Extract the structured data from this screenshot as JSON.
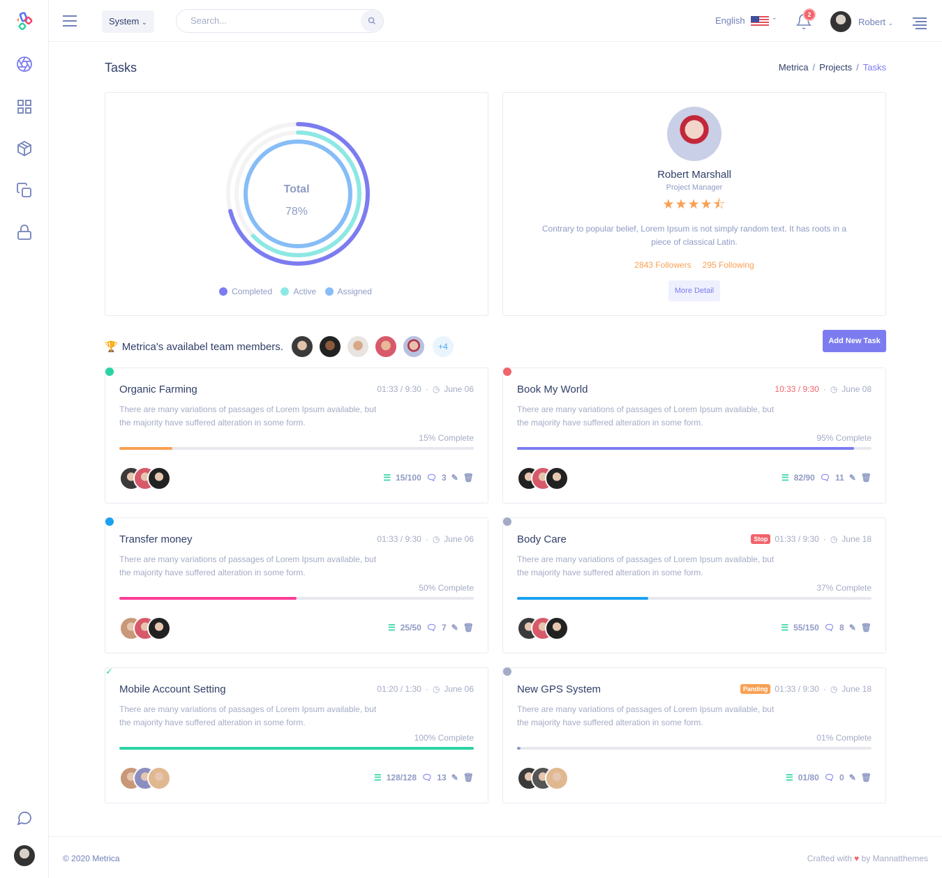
{
  "header": {
    "system_label": "System",
    "search_placeholder": "Search...",
    "language": "English",
    "notifications": "2",
    "user": "Robert"
  },
  "sidebar": {
    "items": [
      "dashboard-icon",
      "apps-icon",
      "box-icon",
      "copy-icon",
      "lock-icon",
      "chat-icon"
    ]
  },
  "page": {
    "title": "Tasks",
    "breadcrumb": [
      "Metrica",
      "Projects",
      "Tasks"
    ]
  },
  "chart_data": {
    "type": "radialBar",
    "center_label": "Total",
    "center_value": "78%",
    "series": [
      {
        "name": "Completed",
        "value": 71,
        "color": "#7c7cf0"
      },
      {
        "name": "Active",
        "value": 63,
        "color": "#8de8e4"
      },
      {
        "name": "Assigned",
        "value": 100,
        "color": "#86bdf7"
      }
    ],
    "ylim": [
      0,
      100
    ],
    "legend": "bottom"
  },
  "profile": {
    "name": "Robert Marshall",
    "role": "Project Manager",
    "rating": 4.5,
    "stars": "★★★★⯪",
    "description": "Contrary to popular belief, Lorem Ipsum is not simply random text. It has roots in a piece of classical Latin.",
    "followers": "2843 Followers",
    "following": "295 Following",
    "more_label": "More Detail"
  },
  "team": {
    "label": "Metrica's availabel team members.",
    "extra": "+4",
    "add_label": "Add New Task"
  },
  "tasks": [
    {
      "title": "Organic Farming",
      "time": "01:33 / 9:30",
      "date": "June 06",
      "desc": "There are many variations of passages of Lorem Ipsum available, but the majority have suffered alteration in some form.",
      "pct": 15,
      "pct_label": "15% Complete",
      "bar": "#f9a054",
      "dot": "#2bd3a3",
      "status": "",
      "checks": "15/100",
      "comments": "3"
    },
    {
      "title": "Book My World",
      "time": "10:33 / 9:30",
      "time_color": "#f1646c",
      "date": "June 08",
      "desc": "There are many variations of passages of Lorem Ipsum available, but the majority have suffered alteration in some form.",
      "pct": 95,
      "pct_label": "95% Complete",
      "bar": "#7c7cf0",
      "dot": "#f1646c",
      "status": "",
      "checks": "82/90",
      "comments": "11"
    },
    {
      "title": "Transfer money",
      "time": "01:33 / 9:30",
      "date": "June 06",
      "desc": "There are many variations of passages of Lorem Ipsum available, but the majority have suffered alteration in some form.",
      "pct": 50,
      "pct_label": "50% Complete",
      "bar": "#fd3c97",
      "dot": "#1ca1f0",
      "status": "",
      "checks": "25/50",
      "comments": "7"
    },
    {
      "title": "Body Care",
      "time": "01:33 / 9:30",
      "date": "June 18",
      "desc": "There are many variations of passages of Lorem Ipsum available, but the majority have suffered alteration in some form.",
      "pct": 37,
      "pct_label": "37% Complete",
      "bar": "#1ca1f0",
      "dot": "#a4abc5",
      "status": "Stop",
      "status_color": "#f1646c",
      "checks": "55/150",
      "comments": "8"
    },
    {
      "title": "Mobile Account Setting",
      "time": "01:20 / 1:30",
      "date": "June 06",
      "desc": "There are many variations of passages of Lorem Ipsum available, but the majority have suffered alteration in some form.",
      "pct": 100,
      "pct_label": "100% Complete",
      "bar": "#2bd3a3",
      "dot": "check",
      "status": "",
      "checks": "128/128",
      "comments": "13"
    },
    {
      "title": "New GPS System",
      "time": "01:33 / 9:30",
      "date": "June 18",
      "desc": "There are many variations of passages of Lorem Ipsum available, but the majority have suffered alteration in some form.",
      "pct": 1,
      "pct_label": "01% Complete",
      "bar": "#8f9bc4",
      "dot": "#a4abc5",
      "status": "Panding",
      "status_color": "#f9a054",
      "checks": "01/80",
      "comments": "0"
    }
  ],
  "footer": {
    "copyright": "© 2020 Metrica",
    "crafted": "Crafted with",
    "by": "by Mannatthemes"
  }
}
